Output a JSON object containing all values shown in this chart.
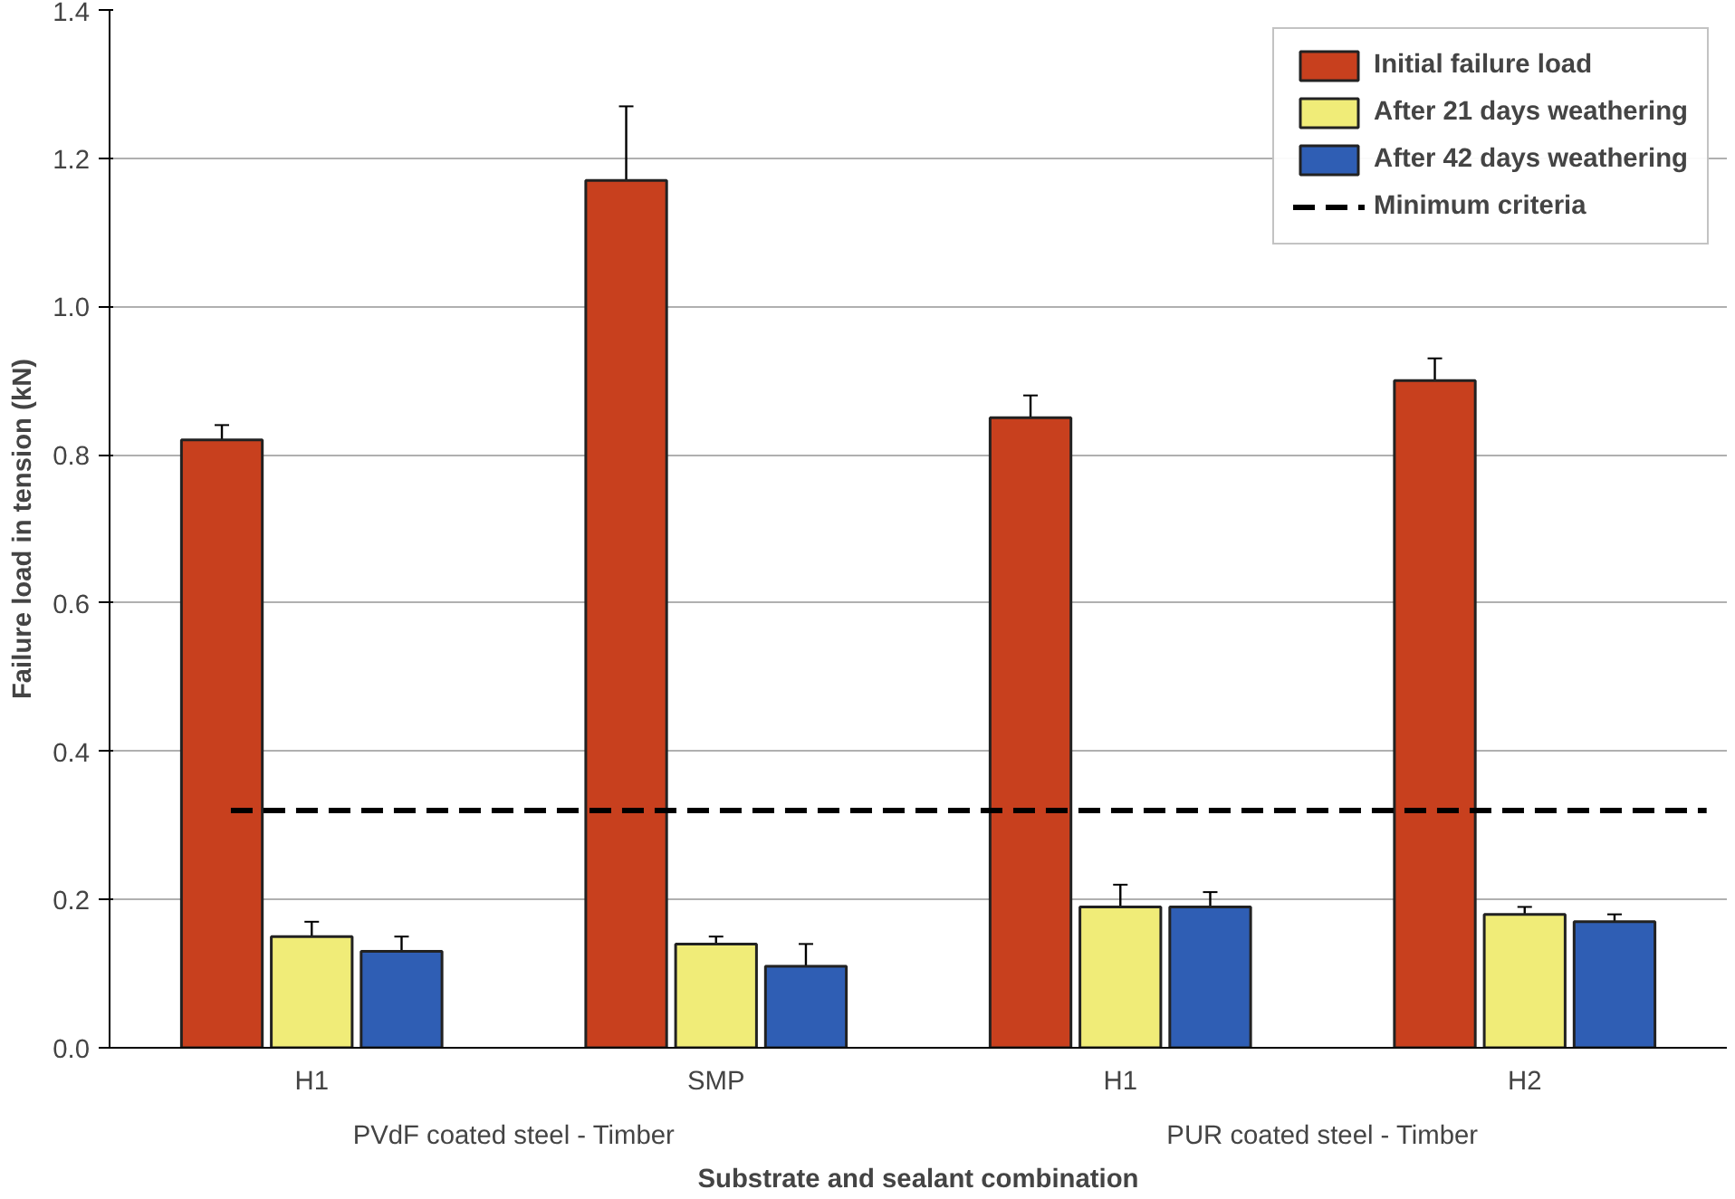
{
  "chart_data": {
    "type": "bar",
    "xlabel": "Substrate and sealant combination",
    "ylabel": "Failure load in tension (kN)",
    "categories": [
      "H1",
      "SMP",
      "H1",
      "H2"
    ],
    "series": [
      {
        "name": "Initial failure load",
        "color": "#c8401e",
        "values": [
          0.82,
          1.17,
          0.85,
          0.9
        ],
        "errors": [
          0.02,
          0.1,
          0.03,
          0.03
        ]
      },
      {
        "name": "After 21 days weathering",
        "color": "#f0ec78",
        "values": [
          0.15,
          0.14,
          0.19,
          0.18
        ],
        "errors": [
          0.02,
          0.01,
          0.03,
          0.01
        ]
      },
      {
        "name": "After 42 days weathering",
        "color": "#2f5eb4",
        "values": [
          0.13,
          0.11,
          0.19,
          0.17
        ],
        "errors": [
          0.02,
          0.03,
          0.02,
          0.01
        ]
      }
    ],
    "ref_lines": [
      {
        "axis": "y",
        "value": 0.32,
        "label": "Minimum criteria",
        "color": "#000000",
        "line_style": "dashed"
      }
    ],
    "annotations": [
      "PVdF coated steel - Timber",
      "PUR coated steel - Timber"
    ],
    "ylim": [
      0,
      1.4
    ],
    "yticks": [
      {
        "value": 0,
        "label": "0.0"
      },
      {
        "value": 0.2,
        "label": "0.2"
      },
      {
        "value": 0.4,
        "label": "0.4"
      },
      {
        "value": 0.6,
        "label": "0.6"
      },
      {
        "value": 0.8,
        "label": "0.8"
      },
      {
        "value": 1.0,
        "label": "1.0"
      },
      {
        "value": 1.2,
        "label": "1.2"
      },
      {
        "value": 1.4,
        "label": "1.4"
      }
    ],
    "grid": "y",
    "legend": "top right"
  }
}
